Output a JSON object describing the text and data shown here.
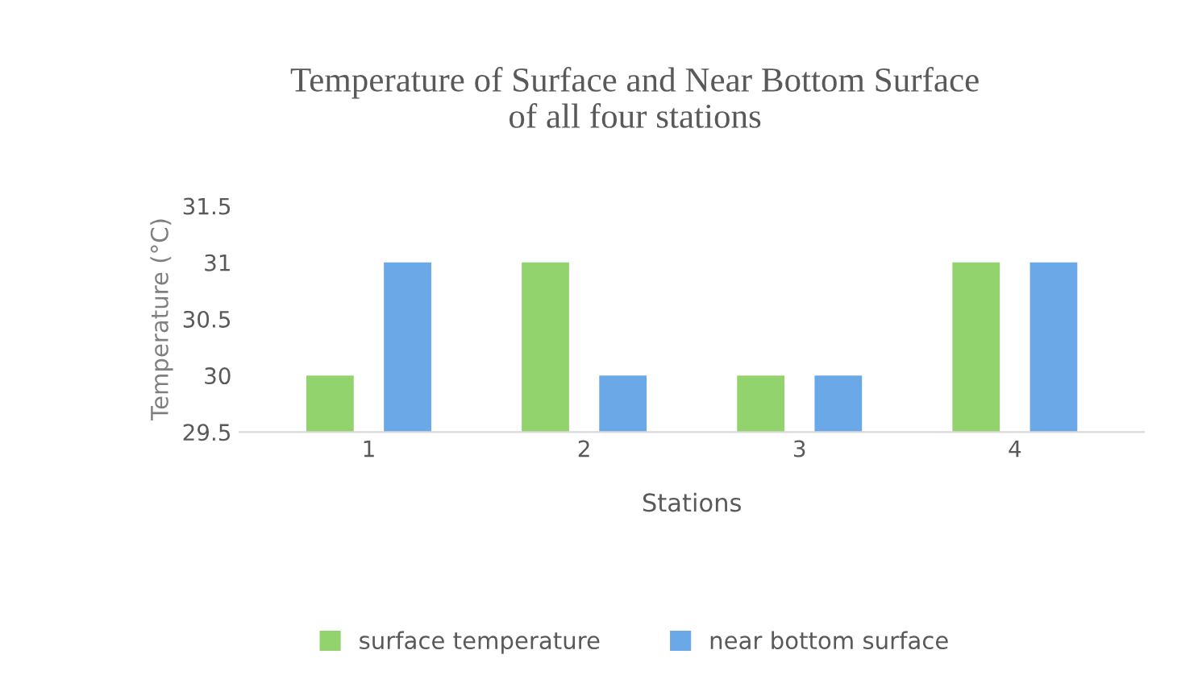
{
  "chart_data": {
    "type": "bar",
    "title": "Temperature of Surface and Near Bottom Surface\nof all four stations",
    "xlabel": "Stations",
    "ylabel": "Temperature (°C)",
    "categories": [
      "1",
      "2",
      "3",
      "4"
    ],
    "series": [
      {
        "name": "surface temperature",
        "color": "#92d36e",
        "values": [
          30,
          31,
          30,
          31
        ]
      },
      {
        "name": "near bottom surface",
        "color": "#6aa8e8",
        "values": [
          31,
          30,
          30,
          31
        ]
      }
    ],
    "ylim": [
      29.5,
      31.5
    ],
    "yticks": [
      29.5,
      30,
      30.5,
      31,
      31.5
    ],
    "grid": false,
    "legend": "bottom"
  }
}
